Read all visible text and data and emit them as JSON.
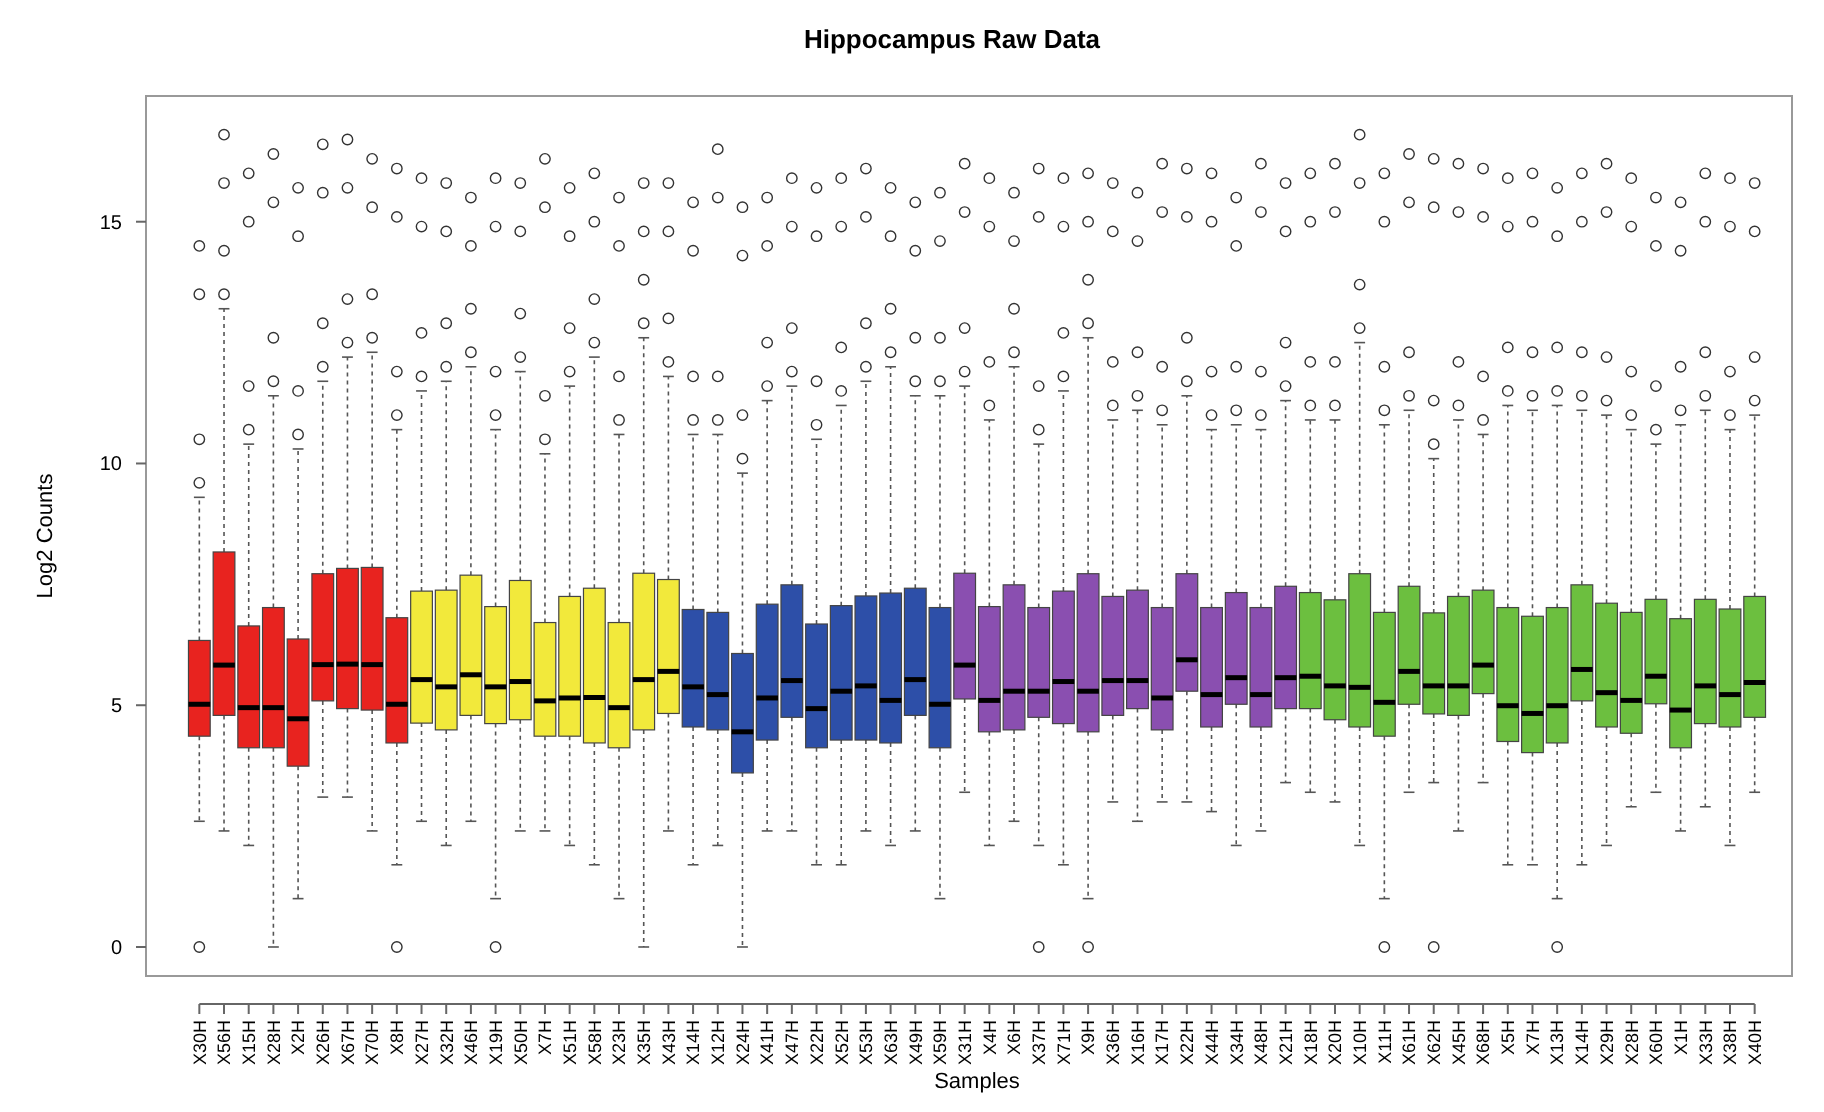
{
  "chart_data": {
    "type": "box",
    "title": "Hippocampus Raw Data",
    "xlabel": "Samples",
    "ylabel": "Log2 Counts",
    "categories": [
      "X30H",
      "X56H",
      "X15H",
      "X28H",
      "X2H",
      "X26H",
      "X67H",
      "X70H",
      "X8H",
      "X27H",
      "X32H",
      "X46H",
      "X19H",
      "X50H",
      "X7H",
      "X51H",
      "X58H",
      "X23H",
      "X35H",
      "X43H",
      "X14H",
      "X12H",
      "X24H",
      "X41H",
      "X47H",
      "X22H",
      "X52H",
      "X53H",
      "X63H",
      "X49H",
      "X59H",
      "X31H",
      "X4H",
      "X6H",
      "X37H",
      "X71H",
      "X9H",
      "X36H",
      "X16H",
      "X17H",
      "X22H",
      "X44H",
      "X34H",
      "X48H",
      "X21H",
      "X18H",
      "X20H",
      "X10H",
      "X11H",
      "X61H",
      "X62H",
      "X45H",
      "X68H",
      "X5H",
      "X7H",
      "X13H",
      "X14H",
      "X29H",
      "X28H",
      "X60H",
      "X1H",
      "X33H",
      "X38H",
      "X40H"
    ],
    "colors": [
      "#e8231f",
      "#e8231f",
      "#e8231f",
      "#e8231f",
      "#e8231f",
      "#e8231f",
      "#e8231f",
      "#e8231f",
      "#e8231f",
      "#f2e93b",
      "#f2e93b",
      "#f2e93b",
      "#f2e93b",
      "#f2e93b",
      "#f2e93b",
      "#f2e93b",
      "#f2e93b",
      "#f2e93b",
      "#f2e93b",
      "#f2e93b",
      "#2d4fa8",
      "#2d4fa8",
      "#2d4fa8",
      "#2d4fa8",
      "#2d4fa8",
      "#2d4fa8",
      "#2d4fa8",
      "#2d4fa8",
      "#2d4fa8",
      "#2d4fa8",
      "#2d4fa8",
      "#8a4fb0",
      "#8a4fb0",
      "#8a4fb0",
      "#8a4fb0",
      "#8a4fb0",
      "#8a4fb0",
      "#8a4fb0",
      "#8a4fb0",
      "#8a4fb0",
      "#8a4fb0",
      "#8a4fb0",
      "#8a4fb0",
      "#8a4fb0",
      "#8a4fb0",
      "#6cbf3f",
      "#6cbf3f",
      "#6cbf3f",
      "#6cbf3f",
      "#6cbf3f",
      "#6cbf3f",
      "#6cbf3f",
      "#6cbf3f",
      "#6cbf3f",
      "#6cbf3f",
      "#6cbf3f",
      "#6cbf3f",
      "#6cbf3f",
      "#6cbf3f",
      "#6cbf3f",
      "#6cbf3f",
      "#6cbf3f",
      "#6cbf3f",
      "#6cbf3f"
    ],
    "ylim": [
      -0.6,
      17.6
    ],
    "yticks": [
      0,
      5,
      10,
      15
    ],
    "grid": false,
    "boxes": [
      {
        "low": 2.6,
        "q1": 4.36,
        "median": 5.02,
        "q3": 6.34,
        "high": 9.3,
        "outliers": [
          0,
          9.6,
          10.5,
          13.5,
          14.5
        ]
      },
      {
        "low": 2.4,
        "q1": 4.79,
        "median": 5.83,
        "q3": 8.17,
        "high": 13.2,
        "outliers": [
          13.5,
          14.4,
          15.8,
          16.8
        ]
      },
      {
        "low": 2.1,
        "q1": 4.12,
        "median": 4.95,
        "q3": 6.64,
        "high": 10.4,
        "outliers": [
          10.7,
          11.6,
          15.0,
          16.0
        ]
      },
      {
        "low": 0,
        "q1": 4.12,
        "median": 4.95,
        "q3": 7.02,
        "high": 11.4,
        "outliers": [
          11.7,
          12.6,
          15.4,
          16.4
        ]
      },
      {
        "low": 1.0,
        "q1": 3.74,
        "median": 4.72,
        "q3": 6.37,
        "high": 10.3,
        "outliers": [
          10.6,
          11.5,
          14.7,
          15.7
        ]
      },
      {
        "low": 3.1,
        "q1": 5.09,
        "median": 5.84,
        "q3": 7.72,
        "high": 11.7,
        "outliers": [
          12.0,
          12.9,
          15.6,
          16.6
        ]
      },
      {
        "low": 3.1,
        "q1": 4.93,
        "median": 5.85,
        "q3": 7.83,
        "high": 12.2,
        "outliers": [
          12.5,
          13.4,
          15.7,
          16.7
        ]
      },
      {
        "low": 2.4,
        "q1": 4.9,
        "median": 5.84,
        "q3": 7.85,
        "high": 12.3,
        "outliers": [
          12.6,
          13.5,
          15.3,
          16.3
        ]
      },
      {
        "low": 1.7,
        "q1": 4.22,
        "median": 5.02,
        "q3": 6.81,
        "high": 10.7,
        "outliers": [
          0,
          11.0,
          11.9,
          15.1,
          16.1
        ]
      },
      {
        "low": 2.6,
        "q1": 4.63,
        "median": 5.53,
        "q3": 7.36,
        "high": 11.5,
        "outliers": [
          11.8,
          12.7,
          14.9,
          15.9
        ]
      },
      {
        "low": 2.1,
        "q1": 4.49,
        "median": 5.38,
        "q3": 7.38,
        "high": 11.7,
        "outliers": [
          12.0,
          12.9,
          14.8,
          15.8
        ]
      },
      {
        "low": 2.6,
        "q1": 4.79,
        "median": 5.63,
        "q3": 7.69,
        "high": 12.0,
        "outliers": [
          12.3,
          13.2,
          14.5,
          15.5
        ]
      },
      {
        "low": 1.0,
        "q1": 4.62,
        "median": 5.38,
        "q3": 7.04,
        "high": 10.7,
        "outliers": [
          0,
          11.0,
          11.9,
          14.9,
          15.9
        ]
      },
      {
        "low": 2.4,
        "q1": 4.7,
        "median": 5.49,
        "q3": 7.58,
        "high": 11.9,
        "outliers": [
          12.2,
          13.1,
          14.8,
          15.8
        ]
      },
      {
        "low": 2.4,
        "q1": 4.36,
        "median": 5.09,
        "q3": 6.71,
        "high": 10.2,
        "outliers": [
          10.5,
          11.4,
          15.3,
          16.3
        ]
      },
      {
        "low": 2.1,
        "q1": 4.36,
        "median": 5.15,
        "q3": 7.25,
        "high": 11.6,
        "outliers": [
          11.9,
          12.8,
          14.7,
          15.7
        ]
      },
      {
        "low": 1.7,
        "q1": 4.22,
        "median": 5.16,
        "q3": 7.42,
        "high": 12.2,
        "outliers": [
          12.5,
          13.4,
          15.0,
          16.0
        ]
      },
      {
        "low": 1.0,
        "q1": 4.12,
        "median": 4.95,
        "q3": 6.71,
        "high": 10.6,
        "outliers": [
          10.9,
          11.8,
          14.5,
          15.5
        ]
      },
      {
        "low": 0,
        "q1": 4.49,
        "median": 5.53,
        "q3": 7.73,
        "high": 12.6,
        "outliers": [
          12.9,
          13.8,
          14.8,
          15.8
        ]
      },
      {
        "low": 2.4,
        "q1": 4.83,
        "median": 5.7,
        "q3": 7.6,
        "high": 11.8,
        "outliers": [
          12.1,
          13.0,
          14.8,
          15.8
        ]
      },
      {
        "low": 1.7,
        "q1": 4.55,
        "median": 5.38,
        "q3": 6.98,
        "high": 10.6,
        "outliers": [
          10.9,
          11.8,
          14.4,
          15.4
        ]
      },
      {
        "low": 2.1,
        "q1": 4.49,
        "median": 5.22,
        "q3": 6.92,
        "high": 10.6,
        "outliers": [
          10.9,
          11.8,
          15.5,
          16.5
        ]
      },
      {
        "low": 0,
        "q1": 3.6,
        "median": 4.45,
        "q3": 6.07,
        "high": 9.8,
        "outliers": [
          10.1,
          11.0,
          14.3,
          15.3
        ]
      },
      {
        "low": 2.4,
        "q1": 4.28,
        "median": 5.15,
        "q3": 7.09,
        "high": 11.3,
        "outliers": [
          11.6,
          12.5,
          14.5,
          15.5
        ]
      },
      {
        "low": 2.4,
        "q1": 4.75,
        "median": 5.51,
        "q3": 7.49,
        "high": 11.6,
        "outliers": [
          11.9,
          12.8,
          14.9,
          15.9
        ]
      },
      {
        "low": 1.7,
        "q1": 4.12,
        "median": 4.93,
        "q3": 6.68,
        "high": 10.5,
        "outliers": [
          10.8,
          11.7,
          14.7,
          15.7
        ]
      },
      {
        "low": 1.7,
        "q1": 4.28,
        "median": 5.29,
        "q3": 7.06,
        "high": 11.2,
        "outliers": [
          11.5,
          12.4,
          14.9,
          15.9
        ]
      },
      {
        "low": 2.4,
        "q1": 4.28,
        "median": 5.4,
        "q3": 7.26,
        "high": 11.7,
        "outliers": [
          12.0,
          12.9,
          15.1,
          16.1
        ]
      },
      {
        "low": 2.1,
        "q1": 4.22,
        "median": 5.1,
        "q3": 7.32,
        "high": 12.0,
        "outliers": [
          12.3,
          13.2,
          14.7,
          15.7
        ]
      },
      {
        "low": 2.4,
        "q1": 4.79,
        "median": 5.53,
        "q3": 7.42,
        "high": 11.4,
        "outliers": [
          11.7,
          12.6,
          14.4,
          15.4
        ]
      },
      {
        "low": 1.0,
        "q1": 4.12,
        "median": 5.02,
        "q3": 7.02,
        "high": 11.4,
        "outliers": [
          11.7,
          12.6,
          14.6,
          15.6
        ]
      },
      {
        "low": 3.2,
        "q1": 5.13,
        "median": 5.83,
        "q3": 7.73,
        "high": 11.6,
        "outliers": [
          11.9,
          12.8,
          15.2,
          16.2
        ]
      },
      {
        "low": 2.1,
        "q1": 4.45,
        "median": 5.1,
        "q3": 7.04,
        "high": 10.9,
        "outliers": [
          11.2,
          12.1,
          14.9,
          15.9
        ]
      },
      {
        "low": 2.6,
        "q1": 4.49,
        "median": 5.29,
        "q3": 7.49,
        "high": 12.0,
        "outliers": [
          12.3,
          13.2,
          14.6,
          15.6
        ]
      },
      {
        "low": 2.1,
        "q1": 4.75,
        "median": 5.29,
        "q3": 7.02,
        "high": 10.4,
        "outliers": [
          0,
          10.7,
          11.6,
          15.1,
          16.1
        ]
      },
      {
        "low": 1.7,
        "q1": 4.62,
        "median": 5.49,
        "q3": 7.36,
        "high": 11.5,
        "outliers": [
          11.8,
          12.7,
          14.9,
          15.9
        ]
      },
      {
        "low": 1.0,
        "q1": 4.45,
        "median": 5.29,
        "q3": 7.72,
        "high": 12.6,
        "outliers": [
          0,
          12.9,
          13.8,
          15.0,
          16.0
        ]
      },
      {
        "low": 3.0,
        "q1": 4.79,
        "median": 5.51,
        "q3": 7.25,
        "high": 10.9,
        "outliers": [
          11.2,
          12.1,
          14.8,
          15.8
        ]
      },
      {
        "low": 2.6,
        "q1": 4.93,
        "median": 5.51,
        "q3": 7.38,
        "high": 11.1,
        "outliers": [
          11.4,
          12.3,
          14.6,
          15.6
        ]
      },
      {
        "low": 3.0,
        "q1": 4.49,
        "median": 5.15,
        "q3": 7.02,
        "high": 10.8,
        "outliers": [
          11.1,
          12.0,
          15.2,
          16.2
        ]
      },
      {
        "low": 3.0,
        "q1": 5.29,
        "median": 5.94,
        "q3": 7.72,
        "high": 11.4,
        "outliers": [
          11.7,
          12.6,
          15.1,
          16.1
        ]
      },
      {
        "low": 2.8,
        "q1": 4.55,
        "median": 5.22,
        "q3": 7.02,
        "high": 10.7,
        "outliers": [
          11.0,
          11.9,
          15.0,
          16.0
        ]
      },
      {
        "low": 2.1,
        "q1": 5.02,
        "median": 5.57,
        "q3": 7.33,
        "high": 10.8,
        "outliers": [
          11.1,
          12.0,
          14.5,
          15.5
        ]
      },
      {
        "low": 2.4,
        "q1": 4.55,
        "median": 5.22,
        "q3": 7.02,
        "high": 10.7,
        "outliers": [
          11.0,
          11.9,
          15.2,
          16.2
        ]
      },
      {
        "low": 3.4,
        "q1": 4.93,
        "median": 5.57,
        "q3": 7.46,
        "high": 11.3,
        "outliers": [
          11.6,
          12.5,
          14.8,
          15.8
        ]
      },
      {
        "low": 3.2,
        "q1": 4.93,
        "median": 5.6,
        "q3": 7.33,
        "high": 10.9,
        "outliers": [
          11.2,
          12.1,
          15.0,
          16.0
        ]
      },
      {
        "low": 3.0,
        "q1": 4.7,
        "median": 5.4,
        "q3": 7.18,
        "high": 10.9,
        "outliers": [
          11.2,
          12.1,
          15.2,
          16.2
        ]
      },
      {
        "low": 2.1,
        "q1": 4.55,
        "median": 5.37,
        "q3": 7.72,
        "high": 12.5,
        "outliers": [
          12.8,
          13.7,
          15.8,
          16.8
        ]
      },
      {
        "low": 1.0,
        "q1": 4.36,
        "median": 5.06,
        "q3": 6.92,
        "high": 10.8,
        "outliers": [
          0,
          11.1,
          12.0,
          15.0,
          16.0
        ]
      },
      {
        "low": 3.2,
        "q1": 5.02,
        "median": 5.7,
        "q3": 7.46,
        "high": 11.1,
        "outliers": [
          11.4,
          12.3,
          15.4,
          16.4
        ]
      },
      {
        "low": 3.4,
        "q1": 4.82,
        "median": 5.4,
        "q3": 6.91,
        "high": 10.1,
        "outliers": [
          0,
          10.4,
          11.3,
          15.3,
          16.3
        ]
      },
      {
        "low": 2.4,
        "q1": 4.79,
        "median": 5.4,
        "q3": 7.25,
        "high": 10.9,
        "outliers": [
          11.2,
          12.1,
          15.2,
          16.2
        ]
      },
      {
        "low": 3.4,
        "q1": 5.24,
        "median": 5.83,
        "q3": 7.38,
        "high": 10.6,
        "outliers": [
          10.9,
          11.8,
          15.1,
          16.1
        ]
      },
      {
        "low": 1.7,
        "q1": 4.25,
        "median": 4.99,
        "q3": 7.02,
        "high": 11.2,
        "outliers": [
          11.5,
          12.4,
          14.9,
          15.9
        ]
      },
      {
        "low": 1.7,
        "q1": 4.02,
        "median": 4.83,
        "q3": 6.84,
        "high": 11.1,
        "outliers": [
          11.4,
          12.3,
          15.0,
          16.0
        ]
      },
      {
        "low": 1.0,
        "q1": 4.22,
        "median": 4.99,
        "q3": 7.02,
        "high": 11.2,
        "outliers": [
          0,
          11.5,
          12.4,
          14.7,
          15.7
        ]
      },
      {
        "low": 1.7,
        "q1": 5.09,
        "median": 5.74,
        "q3": 7.49,
        "high": 11.1,
        "outliers": [
          11.4,
          12.3,
          15.0,
          16.0
        ]
      },
      {
        "low": 2.1,
        "q1": 4.55,
        "median": 5.26,
        "q3": 7.11,
        "high": 11.0,
        "outliers": [
          11.3,
          12.2,
          15.2,
          16.2
        ]
      },
      {
        "low": 2.9,
        "q1": 4.42,
        "median": 5.1,
        "q3": 6.92,
        "high": 10.7,
        "outliers": [
          11.0,
          11.9,
          14.9,
          15.9
        ]
      },
      {
        "low": 3.2,
        "q1": 5.03,
        "median": 5.6,
        "q3": 7.19,
        "high": 10.4,
        "outliers": [
          10.7,
          11.6,
          14.5,
          15.5
        ]
      },
      {
        "low": 2.4,
        "q1": 4.12,
        "median": 4.9,
        "q3": 6.79,
        "high": 10.8,
        "outliers": [
          11.1,
          12.0,
          14.4,
          15.4
        ]
      },
      {
        "low": 2.9,
        "q1": 4.62,
        "median": 5.4,
        "q3": 7.19,
        "high": 11.1,
        "outliers": [
          11.4,
          12.3,
          15.0,
          16.0
        ]
      },
      {
        "low": 2.1,
        "q1": 4.55,
        "median": 5.22,
        "q3": 6.99,
        "high": 10.7,
        "outliers": [
          11.0,
          11.9,
          14.9,
          15.9
        ]
      },
      {
        "low": 3.2,
        "q1": 4.75,
        "median": 5.47,
        "q3": 7.25,
        "high": 11.0,
        "outliers": [
          11.3,
          12.2,
          14.8,
          15.8
        ]
      }
    ]
  }
}
